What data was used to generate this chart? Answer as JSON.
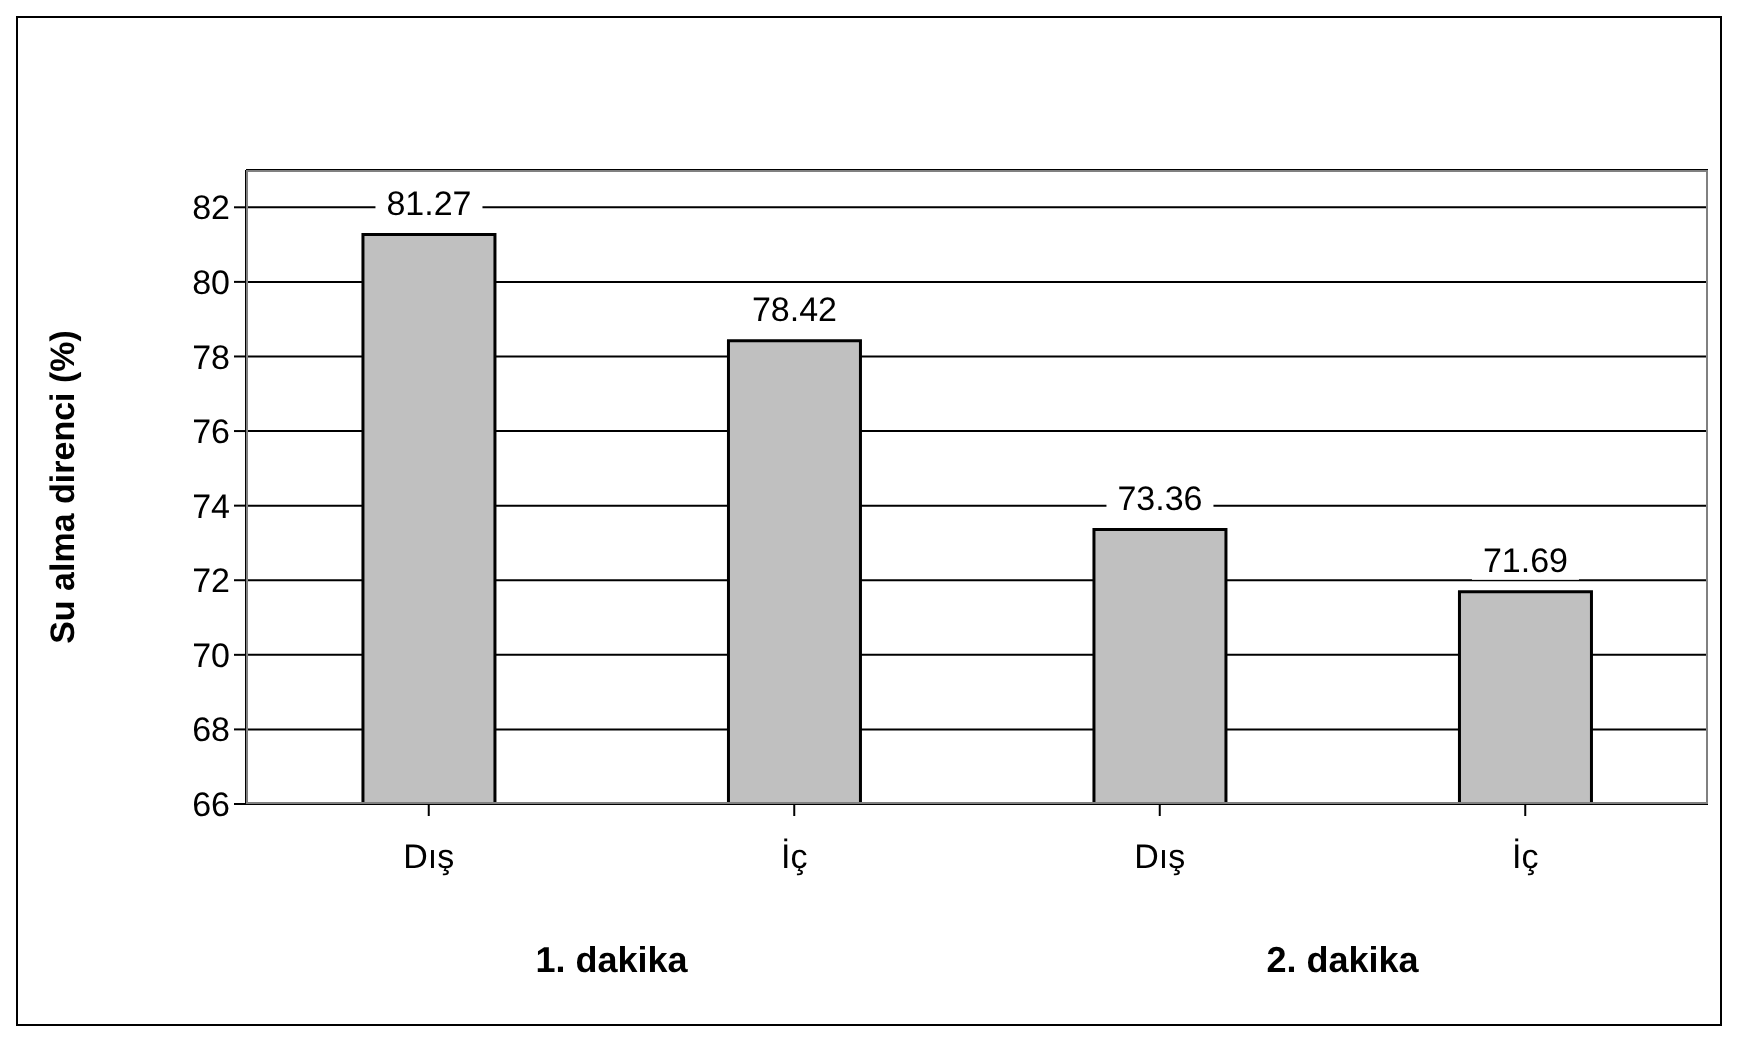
{
  "chart_data": {
    "type": "bar",
    "ylabel": "Su alma direnci (%)",
    "categories": [
      "Dış",
      "İç",
      "Dış",
      "İç"
    ],
    "values": [
      81.27,
      78.42,
      73.36,
      71.69
    ],
    "color": "#c0c0c0",
    "ylim": [
      66,
      83
    ],
    "yticks": [
      66,
      68,
      70,
      72,
      74,
      76,
      78,
      80,
      82
    ],
    "grid": "y",
    "data_labels": true,
    "annotations": [
      "1. dakika",
      "2. dakika"
    ]
  }
}
